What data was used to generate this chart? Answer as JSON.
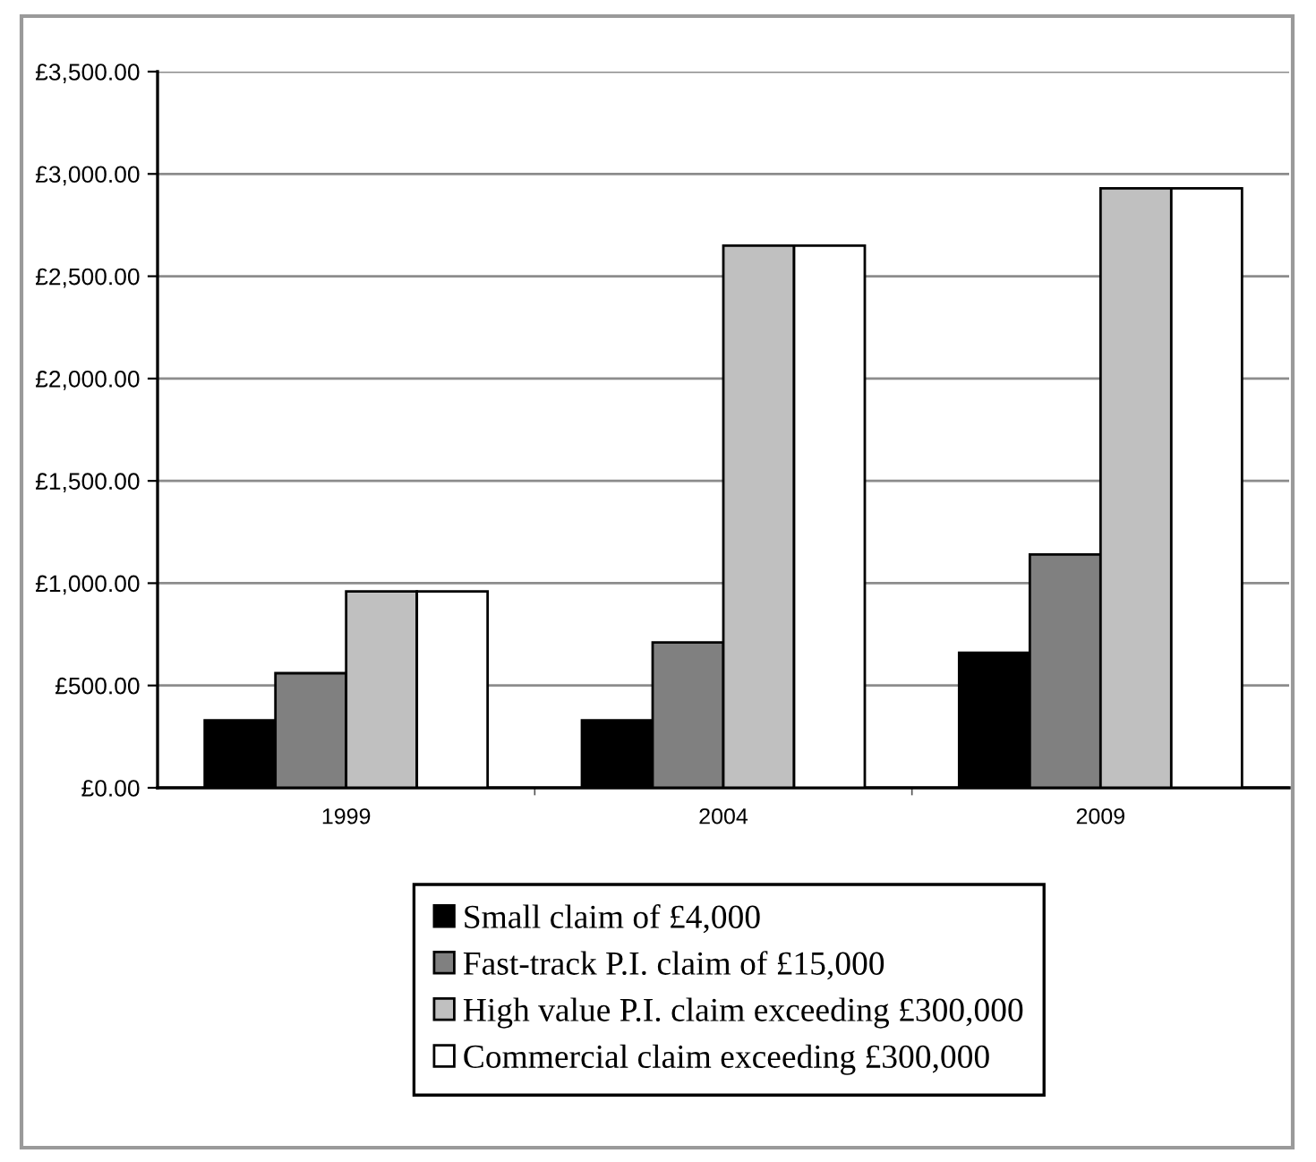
{
  "chart_data": {
    "type": "bar",
    "categories": [
      "1999",
      "2004",
      "2009"
    ],
    "series": [
      {
        "name": "Small claim of £4,000",
        "color": "#000000",
        "values": [
          330,
          330,
          660
        ]
      },
      {
        "name": "Fast-track P.I. claim of £15,000",
        "color": "#808080",
        "values": [
          560,
          710,
          1140
        ]
      },
      {
        "name": "High value P.I. claim exceeding £300,000",
        "color": "#c0c0c0",
        "values": [
          960,
          2650,
          2930
        ]
      },
      {
        "name": "Commercial claim exceeding £300,000",
        "color": "#ffffff",
        "values": [
          960,
          2650,
          2930
        ]
      }
    ],
    "ylim": [
      0,
      3500
    ],
    "yticks": [
      {
        "value": 0,
        "label": "£0.00"
      },
      {
        "value": 500,
        "label": "£500.00"
      },
      {
        "value": 1000,
        "label": "£1,000.00"
      },
      {
        "value": 1500,
        "label": "£1,500.00"
      },
      {
        "value": 2000,
        "label": "£2,000.00"
      },
      {
        "value": 2500,
        "label": "£2,500.00"
      },
      {
        "value": 3000,
        "label": "£3,000.00"
      },
      {
        "value": 3500,
        "label": "£3,500.00"
      }
    ],
    "grid": "y",
    "legend": "bottom"
  }
}
